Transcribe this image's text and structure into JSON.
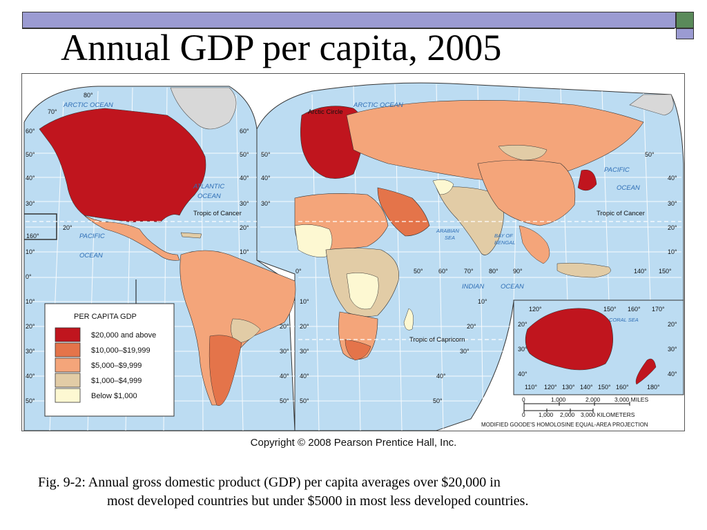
{
  "slide": {
    "title": "Annual GDP per capita, 2005",
    "copyright": "Copyright © 2008 Pearson Prentice Hall, Inc.",
    "caption_line1": "Fig. 9-2: Annual gross domestic product (GDP) per capita averages over $20,000 in",
    "caption_line2": "most developed countries but under $5000 in most less developed countries."
  },
  "map": {
    "legend_title": "PER CAPITA GDP",
    "legend": [
      {
        "label": "$20,000 and above",
        "color": "#c0151e"
      },
      {
        "label": "$10,000–$19,999",
        "color": "#e4744a"
      },
      {
        "label": "$5,000–$9,999",
        "color": "#f4a57a"
      },
      {
        "label": "$1,000–$4,999",
        "color": "#e2cca6"
      },
      {
        "label": "Below $1,000",
        "color": "#fdf8d2"
      }
    ],
    "ocean_color": "#bcdcf2",
    "oceans": {
      "arctic_1": "ARCTIC OCEAN",
      "arctic_2": "ARCTIC OCEAN",
      "atlantic": "ATLANTIC\nOCEAN",
      "atlantic_l1": "ATLANTIC",
      "atlantic_l2": "OCEAN",
      "pacific_w1": "PACIFIC",
      "pacific_w2": "OCEAN",
      "pacific_e1": "PACIFIC",
      "pacific_e2": "OCEAN",
      "indian": "INDIAN",
      "indian_2": "OCEAN",
      "arabian_1": "ARABIAN",
      "arabian_2": "SEA",
      "bengal_1": "BAY OF",
      "bengal_2": "BENGAL",
      "coral": "CORAL   SEA"
    },
    "lines": {
      "arctic_circle": "Arctic Circle",
      "tropic_cancer_w": "Tropic of Cancer",
      "tropic_cancer_e": "Tropic of Cancer",
      "tropic_capricorn": "Tropic of Capricorn"
    },
    "lat_left": [
      "80°",
      "70°",
      "60°",
      "50°",
      "40°",
      "30°",
      "20°",
      "10°",
      "0°",
      "10°",
      "20°",
      "30°",
      "40°",
      "50°"
    ],
    "lat_mid": [
      "60°",
      "50°",
      "40°",
      "30°",
      "20°",
      "10°"
    ],
    "lat_mid2": [
      "50°",
      "40°",
      "30°",
      "10°",
      "20°",
      "30°",
      "40°",
      "50°"
    ],
    "lat_right": [
      "50°",
      "40°",
      "30°",
      "20°",
      "10°"
    ],
    "lon_equator": [
      "0°",
      "50°",
      "60°",
      "70°",
      "80°",
      "90°",
      "140°",
      "150°"
    ],
    "inset": {
      "top": [
        "120°",
        "150°",
        "160°",
        "170°"
      ],
      "bottom": [
        "110°",
        "120°",
        "130°",
        "140°",
        "150°",
        "160°",
        "180°"
      ],
      "left": [
        "20°",
        "30°",
        "40°"
      ],
      "right": [
        "20°",
        "30°",
        "40°"
      ]
    },
    "scale": {
      "miles": [
        "0",
        "1,000",
        "2,000",
        "3,000 MILES"
      ],
      "km": [
        "0",
        "1,000",
        "2,000",
        "3,000 KILOMETERS"
      ]
    },
    "projection": "MODIFIED GOODE'S HOMOLOSINE EQUAL-AREA PROJECTION",
    "box_160": "160°",
    "lat_20_w": "20°",
    "lon_10": "10°"
  }
}
